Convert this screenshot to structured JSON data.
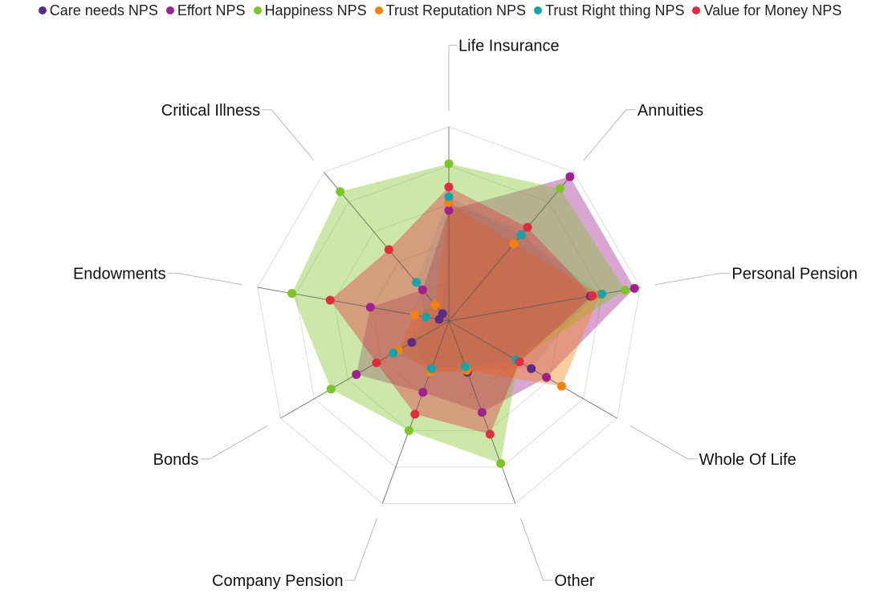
{
  "chart_data": {
    "type": "radar",
    "categories": [
      "Life Insurance",
      "Annuities",
      "Personal Pension",
      "Whole Of Life",
      "Other",
      "Company Pension",
      "Bonds",
      "Endowments",
      "Critical Illness"
    ],
    "rlim": [
      0,
      1
    ],
    "legend_position": "top",
    "series": [
      {
        "name": "Care needs NPS",
        "color": "#5B2C83",
        "values": [
          0.61,
          0.58,
          0.74,
          0.49,
          0.28,
          0.28,
          0.22,
          0.05,
          0.05
        ],
        "filled": false
      },
      {
        "name": "Effort NPS",
        "color": "#A0208F",
        "values": [
          0.57,
          0.97,
          0.97,
          0.58,
          0.5,
          0.39,
          0.55,
          0.41,
          0.21
        ],
        "filled": true
      },
      {
        "name": "Happiness NPS",
        "color": "#7DC526",
        "values": [
          0.81,
          0.89,
          0.92,
          0.41,
          0.78,
          0.6,
          0.7,
          0.82,
          0.87
        ],
        "filled": true
      },
      {
        "name": "Trust Reputation NPS",
        "color": "#F5820D",
        "values": [
          0.61,
          0.52,
          0.79,
          0.67,
          0.27,
          0.28,
          0.3,
          0.18,
          0.11
        ],
        "filled": true
      },
      {
        "name": "Trust Right thing NPS",
        "color": "#14A5AC",
        "values": [
          0.64,
          0.58,
          0.8,
          0.4,
          0.25,
          0.26,
          0.33,
          0.12,
          0.26
        ],
        "filled": false
      },
      {
        "name": "Value for Money NPS",
        "color": "#E12C3F",
        "values": [
          0.69,
          0.63,
          0.75,
          0.42,
          0.62,
          0.51,
          0.43,
          0.62,
          0.48
        ],
        "filled": true
      }
    ]
  }
}
